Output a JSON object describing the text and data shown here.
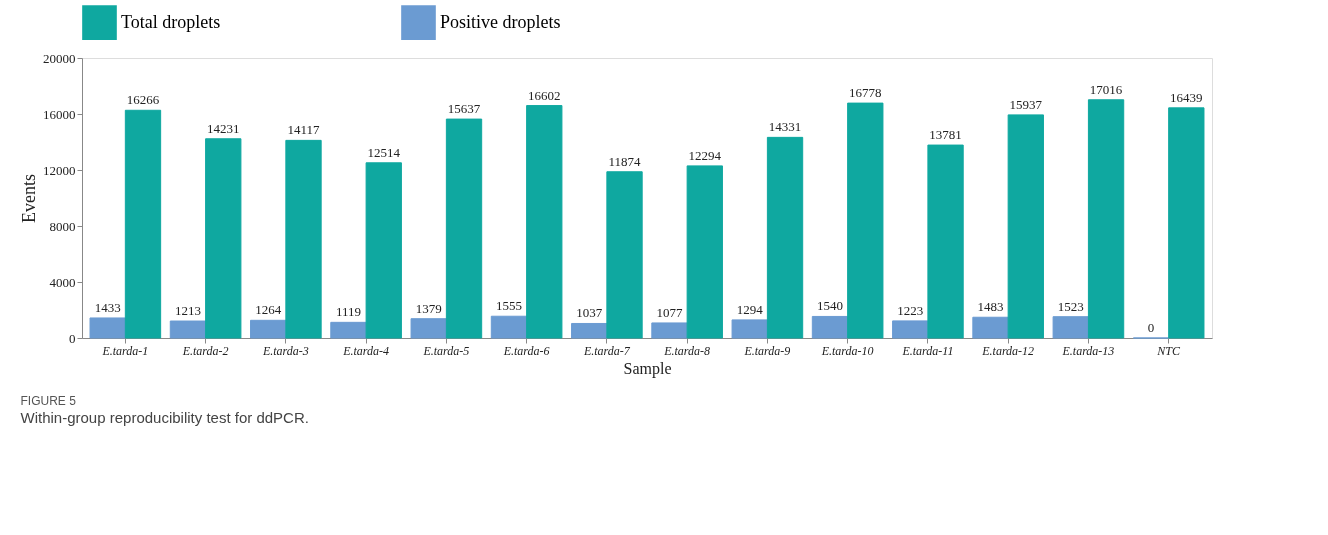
{
  "chart_data": {
    "type": "bar",
    "categories": [
      "E.tarda-1",
      "E.tarda-2",
      "E.tarda-3",
      "E.tarda-4",
      "E.tarda-5",
      "E.tarda-6",
      "E.tarda-7",
      "E.tarda-8",
      "E.tarda-9",
      "E.tarda-10",
      "E.tarda-11",
      "E.tarda-12",
      "E.tarda-13",
      "NTC"
    ],
    "series": [
      {
        "name": "Positive droplets",
        "color": "#6b9bd2",
        "values": [
          1433,
          1213,
          1264,
          1119,
          1379,
          1555,
          1037,
          1077,
          1294,
          1540,
          1223,
          1483,
          1523,
          0
        ]
      },
      {
        "name": "Total droplets",
        "color": "#0fa8a0",
        "values": [
          16266,
          14231,
          14117,
          12514,
          15637,
          16602,
          11874,
          12294,
          14331,
          16778,
          13781,
          15937,
          17016,
          16439
        ]
      }
    ],
    "xlabel": "Sample",
    "ylabel": "Events",
    "ylim": [
      0,
      20000
    ],
    "yticks": [
      0,
      4000,
      8000,
      12000,
      16000,
      20000
    ],
    "grid": false,
    "legend": "top",
    "data_labels": true,
    "annotations": [
      "FIGURE 5",
      "Within-group reproducibility test for ddPCR."
    ]
  }
}
